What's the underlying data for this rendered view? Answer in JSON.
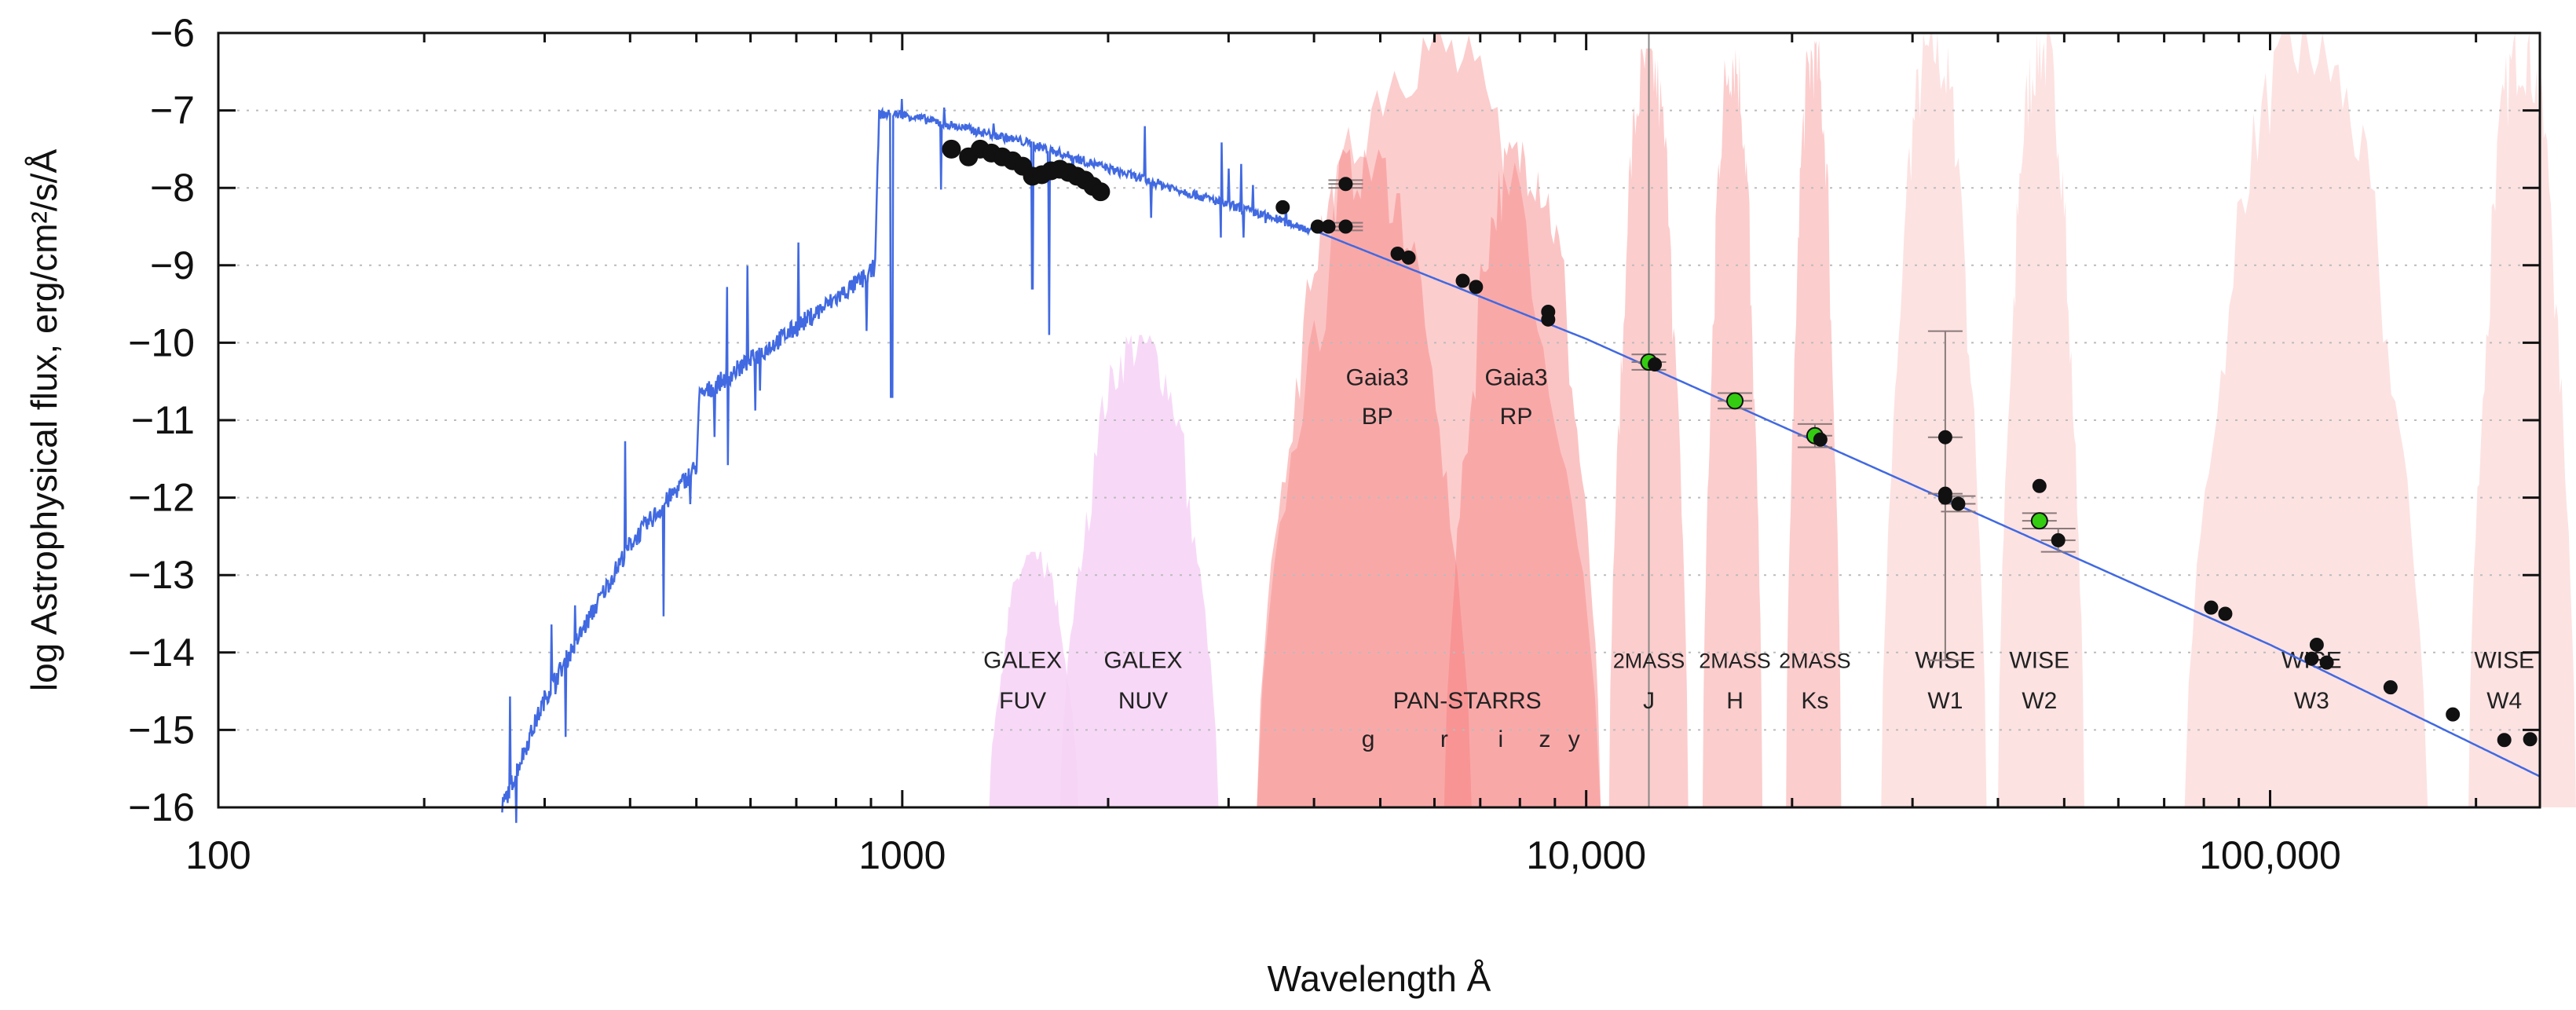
{
  "chart_data": {
    "type": "scatter",
    "title": "",
    "xlabel": "Wavelength Å",
    "ylabel": "log Astrophysical flux, erg/cm²/s/Å",
    "xscale": "log",
    "xlim": [
      100,
      248000
    ],
    "ylim": [
      -16,
      -6
    ],
    "grid": "horizontal dotted",
    "x_ticks": [
      {
        "value": 100,
        "label": "100"
      },
      {
        "value": 1000,
        "label": "1000"
      },
      {
        "value": 10000,
        "label": "10,000"
      },
      {
        "value": 100000,
        "label": "100,000"
      }
    ],
    "y_ticks": [
      {
        "value": -6,
        "label": "−6"
      },
      {
        "value": -7,
        "label": "−7"
      },
      {
        "value": -8,
        "label": "−8"
      },
      {
        "value": -9,
        "label": "−9"
      },
      {
        "value": -10,
        "label": "−10"
      },
      {
        "value": -11,
        "label": "−11"
      },
      {
        "value": -12,
        "label": "−12"
      },
      {
        "value": -13,
        "label": "−13"
      },
      {
        "value": -14,
        "label": "−14"
      },
      {
        "value": -15,
        "label": "−15"
      },
      {
        "value": -16,
        "label": "−16"
      }
    ],
    "colors": {
      "model": "#4169e1",
      "point": "#111111",
      "highlight": "#33cc11",
      "errorbar": "#8a7a7a",
      "uv_band": "#f6d2f6",
      "gaia_band": "#f77c7c",
      "ir_band": "#fcc8c8",
      "wise_band": "#fde0e0"
    },
    "model_spectrum_anchors": [
      [
        260,
        -16
      ],
      [
        300,
        -14.6
      ],
      [
        400,
        -12.6
      ],
      [
        500,
        -11.6
      ],
      [
        505,
        -10.7
      ],
      [
        700,
        -9.8
      ],
      [
        900,
        -9.1
      ],
      [
        912,
        -9.0
      ],
      [
        925,
        -7.05
      ],
      [
        1000,
        -7.05
      ],
      [
        1500,
        -7.4
      ],
      [
        2000,
        -7.75
      ],
      [
        4000,
        -8.55
      ],
      [
        10000,
        -9.95
      ],
      [
        100000,
        -13.9
      ],
      [
        248000,
        -15.6
      ]
    ],
    "points": [
      {
        "x": 1180,
        "y": -7.5
      },
      {
        "x": 1250,
        "y": -7.6
      },
      {
        "x": 1300,
        "y": -7.5
      },
      {
        "x": 1350,
        "y": -7.55
      },
      {
        "x": 1400,
        "y": -7.6
      },
      {
        "x": 1450,
        "y": -7.65
      },
      {
        "x": 1500,
        "y": -7.72
      },
      {
        "x": 1550,
        "y": -7.85
      },
      {
        "x": 1600,
        "y": -7.83
      },
      {
        "x": 1650,
        "y": -7.78
      },
      {
        "x": 1700,
        "y": -7.76
      },
      {
        "x": 1750,
        "y": -7.8
      },
      {
        "x": 1800,
        "y": -7.85
      },
      {
        "x": 1850,
        "y": -7.9
      },
      {
        "x": 1900,
        "y": -7.98
      },
      {
        "x": 1950,
        "y": -8.05
      },
      {
        "x": 3600,
        "y": -8.25
      },
      {
        "x": 4050,
        "y": -8.5
      },
      {
        "x": 4200,
        "y": -8.5
      },
      {
        "x": 4450,
        "y": -8.5,
        "err": 0.05
      },
      {
        "x": 4450,
        "y": -7.95,
        "err": 0.05
      },
      {
        "x": 5300,
        "y": -8.85
      },
      {
        "x": 5500,
        "y": -8.9
      },
      {
        "x": 6600,
        "y": -9.2
      },
      {
        "x": 6900,
        "y": -9.28
      },
      {
        "x": 8800,
        "y": -9.6
      },
      {
        "x": 8800,
        "y": -9.7
      },
      {
        "x": 12350,
        "y": -10.25,
        "err": 0.1,
        "highlight": true
      },
      {
        "x": 12600,
        "y": -10.28
      },
      {
        "x": 16500,
        "y": -10.75,
        "err": 0.1,
        "highlight": true
      },
      {
        "x": 21600,
        "y": -11.2,
        "err": 0.15,
        "highlight": true
      },
      {
        "x": 22000,
        "y": -11.25
      },
      {
        "x": 33500,
        "y": -11.22,
        "err": 0
      },
      {
        "x": 33500,
        "y": -11.95,
        "err_lo": -14.1,
        "err_hi": -9.85
      },
      {
        "x": 33500,
        "y": -12.0
      },
      {
        "x": 35000,
        "y": -12.08,
        "err": 0.1
      },
      {
        "x": 46000,
        "y": -11.85
      },
      {
        "x": 46000,
        "y": -12.3,
        "err": 0.1,
        "highlight": true
      },
      {
        "x": 49000,
        "y": -12.55,
        "err": 0.15
      },
      {
        "x": 82000,
        "y": -13.42
      },
      {
        "x": 86000,
        "y": -13.5
      },
      {
        "x": 117000,
        "y": -13.9
      },
      {
        "x": 115000,
        "y": -14.08
      },
      {
        "x": 121000,
        "y": -14.13
      },
      {
        "x": 150000,
        "y": -14.45
      },
      {
        "x": 185000,
        "y": -14.8
      },
      {
        "x": 220000,
        "y": -15.13
      },
      {
        "x": 240000,
        "y": -15.12
      }
    ],
    "bands": [
      {
        "survey": "GALEX",
        "filter": "FUV",
        "lo": 1340,
        "hi": 1810,
        "peak": -12.7,
        "kind": "uv",
        "label_x": 1500
      },
      {
        "survey": "GALEX",
        "filter": "NUV",
        "lo": 1700,
        "hi": 2900,
        "peak": -9.9,
        "kind": "uv",
        "label_x": 2250
      },
      {
        "survey": "Gaia3",
        "filter": "BP",
        "lo": 3300,
        "hi": 6800,
        "peak": -7.5,
        "kind": "gaia",
        "label_x": 4950
      },
      {
        "survey": "Gaia3",
        "filter": "RP",
        "lo": 6200,
        "hi": 10500,
        "peak": -7.4,
        "kind": "gaia",
        "label_x": 7900
      },
      {
        "survey": "Gaia3",
        "filter": "G",
        "lo": 3300,
        "hi": 10500,
        "peak": -6.0,
        "kind": "ir",
        "label_x": null
      },
      {
        "survey": "2MASS",
        "filter": "J",
        "lo": 10800,
        "hi": 14100,
        "peak": -6.2,
        "kind": "ir",
        "label_x": 12350
      },
      {
        "survey": "2MASS",
        "filter": "H",
        "lo": 14800,
        "hi": 18100,
        "peak": -6.1,
        "kind": "ir",
        "label_x": 16500
      },
      {
        "survey": "2MASS",
        "filter": "Ks",
        "lo": 19600,
        "hi": 23600,
        "peak": -6.1,
        "kind": "ir",
        "label_x": 21600
      },
      {
        "survey": "WISE",
        "filter": "W1",
        "lo": 27000,
        "hi": 38500,
        "peak": -6.0,
        "kind": "wise",
        "label_x": 33500
      },
      {
        "survey": "WISE",
        "filter": "W2",
        "lo": 40000,
        "hi": 53500,
        "peak": -6.0,
        "kind": "wise",
        "label_x": 46000
      },
      {
        "survey": "WISE",
        "filter": "W3",
        "lo": 75000,
        "hi": 170000,
        "peak": -6.0,
        "kind": "wise",
        "label_x": 115000
      },
      {
        "survey": "WISE",
        "filter": "W4",
        "lo": 195000,
        "hi": 280000,
        "peak": -6.0,
        "kind": "wise",
        "label_x": 220000
      }
    ],
    "panstarrs": {
      "label": "PAN-STARRS",
      "label_x": 6700,
      "filters": [
        {
          "name": "g",
          "x": 4800
        },
        {
          "name": "r",
          "x": 6200
        },
        {
          "name": "i",
          "x": 7500
        },
        {
          "name": "z",
          "x": 8700
        },
        {
          "name": "y",
          "x": 9600
        }
      ]
    },
    "vline_x": 12350
  }
}
